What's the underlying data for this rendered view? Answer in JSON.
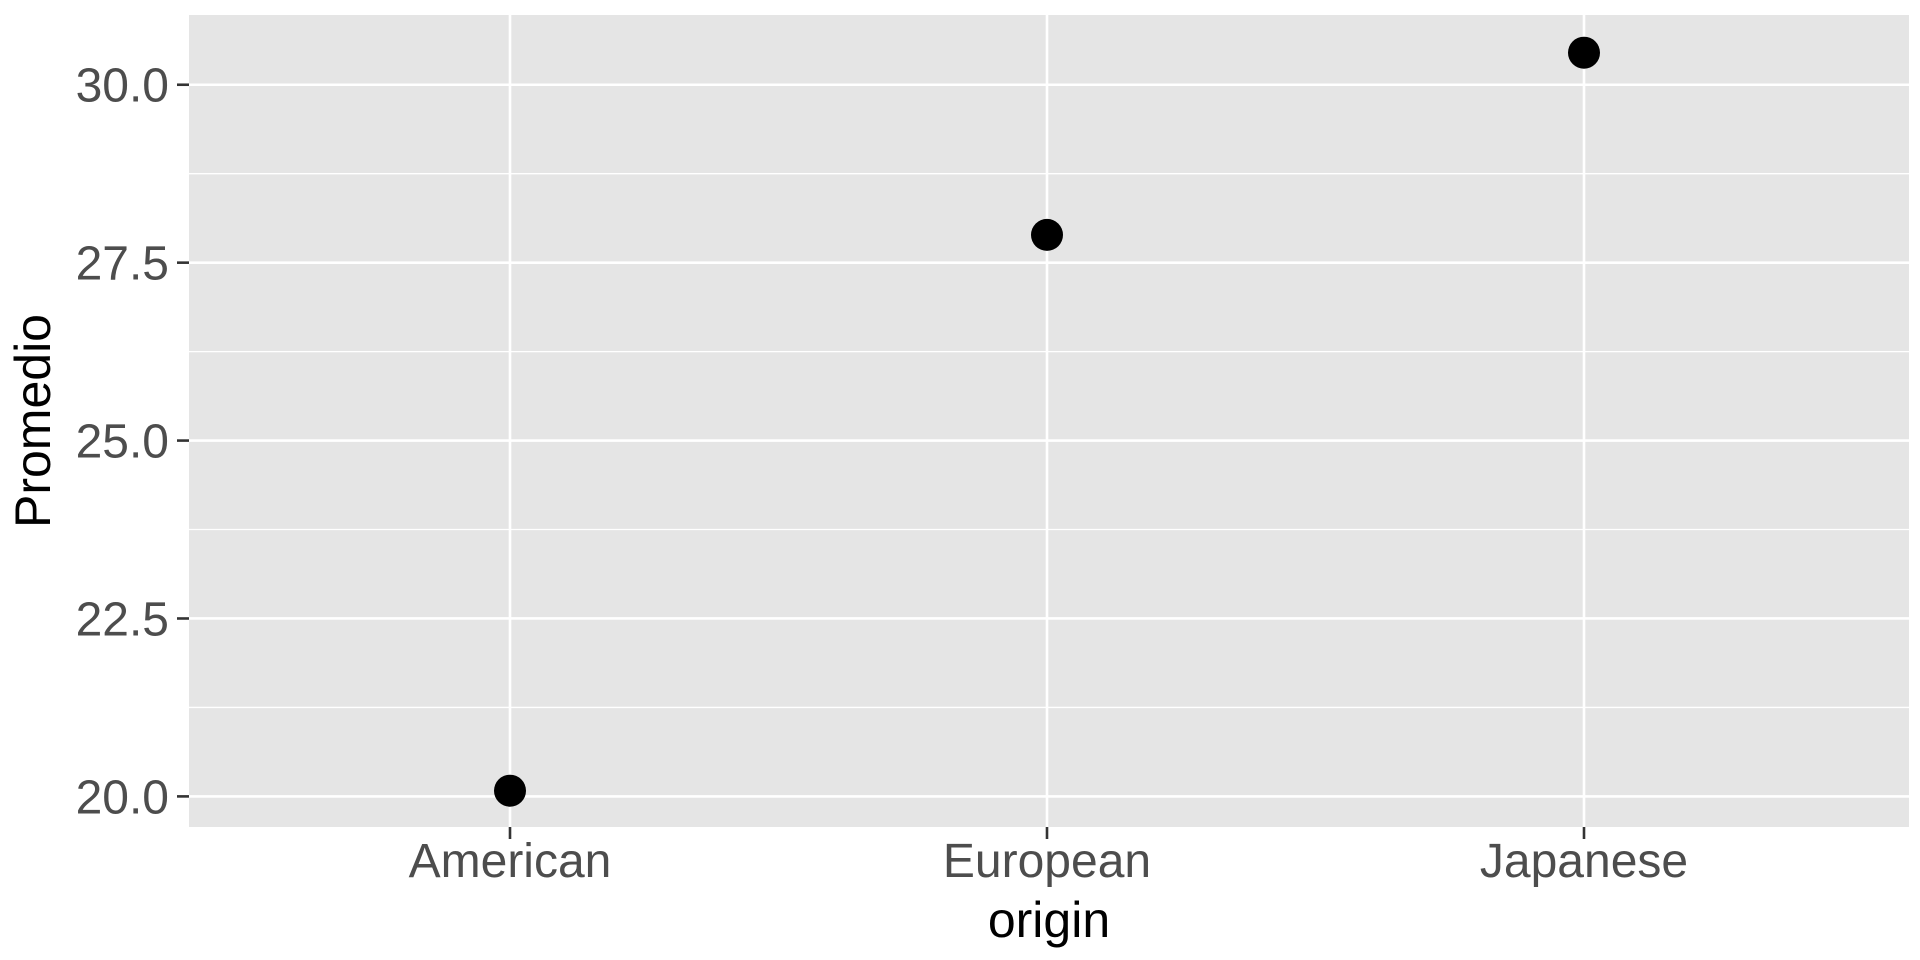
{
  "chart_data": {
    "type": "scatter",
    "categories": [
      "American",
      "European",
      "Japanese"
    ],
    "series": [
      {
        "values": [
          20.08,
          27.89,
          30.45
        ]
      }
    ],
    "xlabel": "origin",
    "ylabel": "Promedio",
    "ylim": [
      19.57,
      30.98
    ],
    "yticks": [
      20.0,
      22.5,
      25.0,
      27.5,
      30.0
    ],
    "ytick_labels": [
      "20.0",
      "22.5",
      "25.0",
      "27.5",
      "30.0"
    ],
    "grid": true,
    "colors": {
      "panel": "#e5e5e5",
      "grid": "#ffffff",
      "point": "#000000",
      "tick_text": "#4d4d4d",
      "title_text": "#000000"
    }
  }
}
